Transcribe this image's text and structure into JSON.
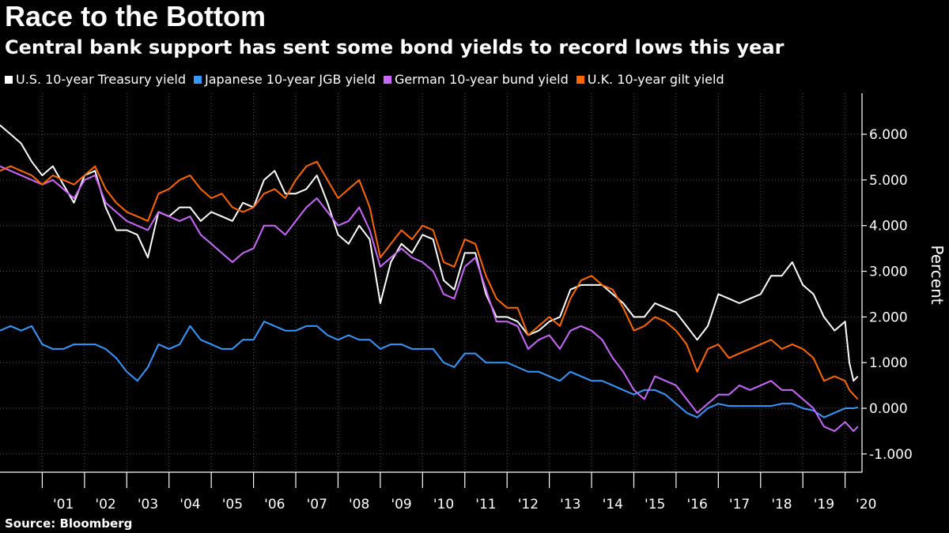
{
  "title": "Race to the Bottom",
  "subtitle": "Central bank support has sent some bond yields to record lows this year",
  "source": "Source: Bloomberg",
  "colors": {
    "background": "#000000",
    "grid": "#555555",
    "axis": "#ffffff"
  },
  "chart_data": {
    "type": "line",
    "title": "Race to the Bottom",
    "subtitle": "Central bank support has sent some bond yields to record lows this year",
    "ylabel": "Percent",
    "xlabel": "",
    "xlim": [
      2000.0,
      2020.4
    ],
    "ylim": [
      -1.4,
      6.9
    ],
    "y_ticks": [
      6.0,
      5.0,
      4.0,
      3.0,
      2.0,
      1.0,
      0.0,
      -1.0
    ],
    "y_tick_labels": [
      "6.000",
      "5.000",
      "4.000",
      "3.000",
      "2.000",
      "1.000",
      "0.000",
      "-1.000"
    ],
    "x_tick_labels": [
      "'01",
      "'02",
      "'03",
      "'04",
      "'05",
      "'06",
      "'07",
      "'08",
      "'09",
      "'10",
      "'11",
      "'12",
      "'13",
      "'14",
      "'15",
      "'16",
      "'17",
      "'18",
      "'19",
      "'20"
    ],
    "legend_position": "top-left",
    "grid": true,
    "series": [
      {
        "name": "U.S. 10-year Treasury yield",
        "color": "#ffffff",
        "x": [
          2000.0,
          2000.25,
          2000.5,
          2000.75,
          2001.0,
          2001.25,
          2001.5,
          2001.75,
          2002.0,
          2002.25,
          2002.5,
          2002.75,
          2003.0,
          2003.25,
          2003.5,
          2003.75,
          2004.0,
          2004.25,
          2004.5,
          2004.75,
          2005.0,
          2005.25,
          2005.5,
          2005.75,
          2006.0,
          2006.25,
          2006.5,
          2006.75,
          2007.0,
          2007.25,
          2007.5,
          2007.75,
          2008.0,
          2008.25,
          2008.5,
          2008.75,
          2009.0,
          2009.25,
          2009.5,
          2009.75,
          2010.0,
          2010.25,
          2010.5,
          2010.75,
          2011.0,
          2011.25,
          2011.5,
          2011.75,
          2012.0,
          2012.25,
          2012.5,
          2012.75,
          2013.0,
          2013.25,
          2013.5,
          2013.75,
          2014.0,
          2014.25,
          2014.5,
          2014.75,
          2015.0,
          2015.25,
          2015.5,
          2015.75,
          2016.0,
          2016.25,
          2016.5,
          2016.75,
          2017.0,
          2017.25,
          2017.5,
          2017.75,
          2018.0,
          2018.25,
          2018.5,
          2018.75,
          2019.0,
          2019.25,
          2019.5,
          2019.75,
          2020.0,
          2020.1,
          2020.2,
          2020.3
        ],
        "values": [
          6.2,
          6.0,
          5.8,
          5.4,
          5.1,
          5.3,
          4.9,
          4.5,
          5.1,
          5.2,
          4.4,
          3.9,
          3.9,
          3.8,
          3.3,
          4.3,
          4.2,
          4.4,
          4.4,
          4.1,
          4.3,
          4.2,
          4.1,
          4.5,
          4.4,
          5.0,
          5.2,
          4.7,
          4.7,
          4.8,
          5.1,
          4.5,
          3.8,
          3.6,
          4.0,
          3.7,
          2.3,
          3.2,
          3.6,
          3.4,
          3.8,
          3.7,
          2.8,
          2.6,
          3.4,
          3.4,
          2.5,
          2.0,
          2.0,
          1.9,
          1.6,
          1.7,
          1.9,
          2.0,
          2.6,
          2.7,
          2.7,
          2.7,
          2.5,
          2.3,
          2.0,
          2.0,
          2.3,
          2.2,
          2.1,
          1.8,
          1.5,
          1.8,
          2.5,
          2.4,
          2.3,
          2.4,
          2.5,
          2.9,
          2.9,
          3.2,
          2.7,
          2.5,
          2.0,
          1.7,
          1.9,
          1.0,
          0.6,
          0.7
        ]
      },
      {
        "name": "Japanese 10-year JGB yield",
        "color": "#3399ff",
        "x": [
          2000.0,
          2000.25,
          2000.5,
          2000.75,
          2001.0,
          2001.25,
          2001.5,
          2001.75,
          2002.0,
          2002.25,
          2002.5,
          2002.75,
          2003.0,
          2003.25,
          2003.5,
          2003.75,
          2004.0,
          2004.25,
          2004.5,
          2004.75,
          2005.0,
          2005.25,
          2005.5,
          2005.75,
          2006.0,
          2006.25,
          2006.5,
          2006.75,
          2007.0,
          2007.25,
          2007.5,
          2007.75,
          2008.0,
          2008.25,
          2008.5,
          2008.75,
          2009.0,
          2009.25,
          2009.5,
          2009.75,
          2010.0,
          2010.25,
          2010.5,
          2010.75,
          2011.0,
          2011.25,
          2011.5,
          2011.75,
          2012.0,
          2012.25,
          2012.5,
          2012.75,
          2013.0,
          2013.25,
          2013.5,
          2013.75,
          2014.0,
          2014.25,
          2014.5,
          2014.75,
          2015.0,
          2015.25,
          2015.5,
          2015.75,
          2016.0,
          2016.25,
          2016.5,
          2016.75,
          2017.0,
          2017.25,
          2017.5,
          2017.75,
          2018.0,
          2018.25,
          2018.5,
          2018.75,
          2019.0,
          2019.25,
          2019.5,
          2019.75,
          2020.0,
          2020.1,
          2020.2,
          2020.3
        ],
        "values": [
          1.7,
          1.8,
          1.7,
          1.8,
          1.4,
          1.3,
          1.3,
          1.4,
          1.4,
          1.4,
          1.3,
          1.1,
          0.8,
          0.6,
          0.9,
          1.4,
          1.3,
          1.4,
          1.8,
          1.5,
          1.4,
          1.3,
          1.3,
          1.5,
          1.5,
          1.9,
          1.8,
          1.7,
          1.7,
          1.8,
          1.8,
          1.6,
          1.5,
          1.6,
          1.5,
          1.5,
          1.3,
          1.4,
          1.4,
          1.3,
          1.3,
          1.3,
          1.0,
          0.9,
          1.2,
          1.2,
          1.0,
          1.0,
          1.0,
          0.9,
          0.8,
          0.8,
          0.7,
          0.6,
          0.8,
          0.7,
          0.6,
          0.6,
          0.5,
          0.4,
          0.3,
          0.4,
          0.4,
          0.3,
          0.1,
          -0.1,
          -0.2,
          0.0,
          0.1,
          0.05,
          0.05,
          0.05,
          0.05,
          0.05,
          0.1,
          0.1,
          0.0,
          -0.05,
          -0.2,
          -0.1,
          0.0,
          0.0,
          0.0,
          0.02
        ]
      },
      {
        "name": "German 10-year bund yield",
        "color": "#cc66ff",
        "x": [
          2000.0,
          2000.25,
          2000.5,
          2000.75,
          2001.0,
          2001.25,
          2001.5,
          2001.75,
          2002.0,
          2002.25,
          2002.5,
          2002.75,
          2003.0,
          2003.25,
          2003.5,
          2003.75,
          2004.0,
          2004.25,
          2004.5,
          2004.75,
          2005.0,
          2005.25,
          2005.5,
          2005.75,
          2006.0,
          2006.25,
          2006.5,
          2006.75,
          2007.0,
          2007.25,
          2007.5,
          2007.75,
          2008.0,
          2008.25,
          2008.5,
          2008.75,
          2009.0,
          2009.25,
          2009.5,
          2009.75,
          2010.0,
          2010.25,
          2010.5,
          2010.75,
          2011.0,
          2011.25,
          2011.5,
          2011.75,
          2012.0,
          2012.25,
          2012.5,
          2012.75,
          2013.0,
          2013.25,
          2013.5,
          2013.75,
          2014.0,
          2014.25,
          2014.5,
          2014.75,
          2015.0,
          2015.25,
          2015.5,
          2015.75,
          2016.0,
          2016.25,
          2016.5,
          2016.75,
          2017.0,
          2017.25,
          2017.5,
          2017.75,
          2018.0,
          2018.25,
          2018.5,
          2018.75,
          2019.0,
          2019.25,
          2019.5,
          2019.75,
          2020.0,
          2020.1,
          2020.2,
          2020.3
        ],
        "values": [
          5.3,
          5.2,
          5.1,
          5.0,
          4.9,
          5.0,
          4.8,
          4.6,
          5.0,
          5.1,
          4.5,
          4.3,
          4.1,
          4.0,
          3.9,
          4.3,
          4.2,
          4.1,
          4.2,
          3.8,
          3.6,
          3.4,
          3.2,
          3.4,
          3.5,
          4.0,
          4.0,
          3.8,
          4.1,
          4.4,
          4.6,
          4.3,
          4.0,
          4.1,
          4.4,
          3.9,
          3.1,
          3.3,
          3.5,
          3.3,
          3.2,
          3.0,
          2.5,
          2.4,
          3.1,
          3.3,
          2.6,
          1.9,
          1.9,
          1.8,
          1.3,
          1.5,
          1.6,
          1.3,
          1.7,
          1.8,
          1.7,
          1.5,
          1.1,
          0.8,
          0.4,
          0.2,
          0.7,
          0.6,
          0.5,
          0.2,
          -0.1,
          0.1,
          0.3,
          0.3,
          0.5,
          0.4,
          0.5,
          0.6,
          0.4,
          0.4,
          0.2,
          0.0,
          -0.4,
          -0.5,
          -0.3,
          -0.4,
          -0.5,
          -0.4
        ]
      },
      {
        "name": "U.K. 10-year gilt yield",
        "color": "#ff6600",
        "x": [
          2000.0,
          2000.25,
          2000.5,
          2000.75,
          2001.0,
          2001.25,
          2001.5,
          2001.75,
          2002.0,
          2002.25,
          2002.5,
          2002.75,
          2003.0,
          2003.25,
          2003.5,
          2003.75,
          2004.0,
          2004.25,
          2004.5,
          2004.75,
          2005.0,
          2005.25,
          2005.5,
          2005.75,
          2006.0,
          2006.25,
          2006.5,
          2006.75,
          2007.0,
          2007.25,
          2007.5,
          2007.75,
          2008.0,
          2008.25,
          2008.5,
          2008.75,
          2009.0,
          2009.25,
          2009.5,
          2009.75,
          2010.0,
          2010.25,
          2010.5,
          2010.75,
          2011.0,
          2011.25,
          2011.5,
          2011.75,
          2012.0,
          2012.25,
          2012.5,
          2012.75,
          2013.0,
          2013.25,
          2013.5,
          2013.75,
          2014.0,
          2014.25,
          2014.5,
          2014.75,
          2015.0,
          2015.25,
          2015.5,
          2015.75,
          2016.0,
          2016.25,
          2016.5,
          2016.75,
          2017.0,
          2017.25,
          2017.5,
          2017.75,
          2018.0,
          2018.25,
          2018.5,
          2018.75,
          2019.0,
          2019.25,
          2019.5,
          2019.75,
          2020.0,
          2020.1,
          2020.2,
          2020.3
        ],
        "values": [
          5.2,
          5.3,
          5.2,
          5.1,
          4.9,
          5.1,
          5.0,
          4.9,
          5.1,
          5.3,
          4.8,
          4.5,
          4.3,
          4.2,
          4.1,
          4.7,
          4.8,
          5.0,
          5.1,
          4.8,
          4.6,
          4.7,
          4.4,
          4.3,
          4.4,
          4.7,
          4.8,
          4.6,
          5.0,
          5.3,
          5.4,
          5.0,
          4.6,
          4.8,
          5.0,
          4.4,
          3.3,
          3.6,
          3.9,
          3.7,
          4.0,
          3.9,
          3.2,
          3.1,
          3.7,
          3.6,
          2.9,
          2.4,
          2.2,
          2.2,
          1.6,
          1.8,
          2.0,
          1.8,
          2.4,
          2.8,
          2.9,
          2.7,
          2.6,
          2.2,
          1.7,
          1.8,
          2.0,
          1.9,
          1.7,
          1.4,
          0.8,
          1.3,
          1.4,
          1.1,
          1.2,
          1.3,
          1.4,
          1.5,
          1.3,
          1.4,
          1.3,
          1.1,
          0.6,
          0.7,
          0.6,
          0.4,
          0.3,
          0.2
        ]
      }
    ]
  }
}
